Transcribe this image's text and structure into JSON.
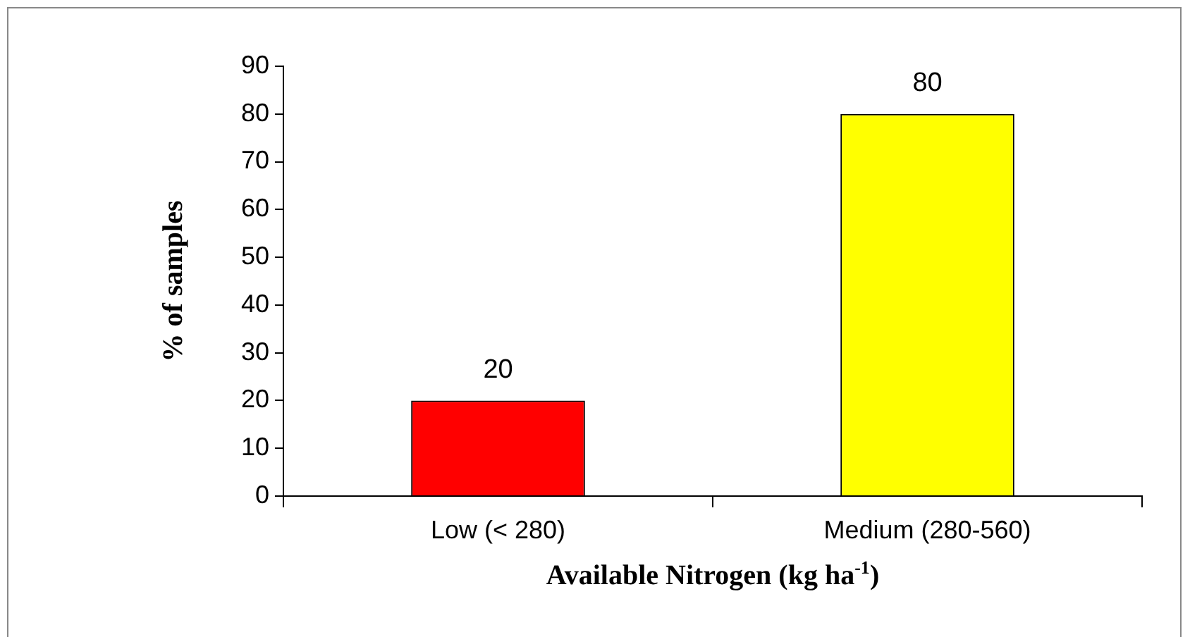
{
  "chart_data": {
    "type": "bar",
    "categories": [
      "Low (< 280)",
      "Medium (280-560)"
    ],
    "values": [
      20,
      80
    ],
    "colors": [
      "#ff0000",
      "#ffff00"
    ],
    "ylim": [
      0,
      90
    ],
    "yticks": [
      0,
      10,
      20,
      30,
      40,
      50,
      60,
      70,
      80,
      90
    ],
    "ylabel": "% of samples",
    "xlabel": "Available Nitrogen (kg ha$^{-1}$)",
    "data_labels": true
  }
}
